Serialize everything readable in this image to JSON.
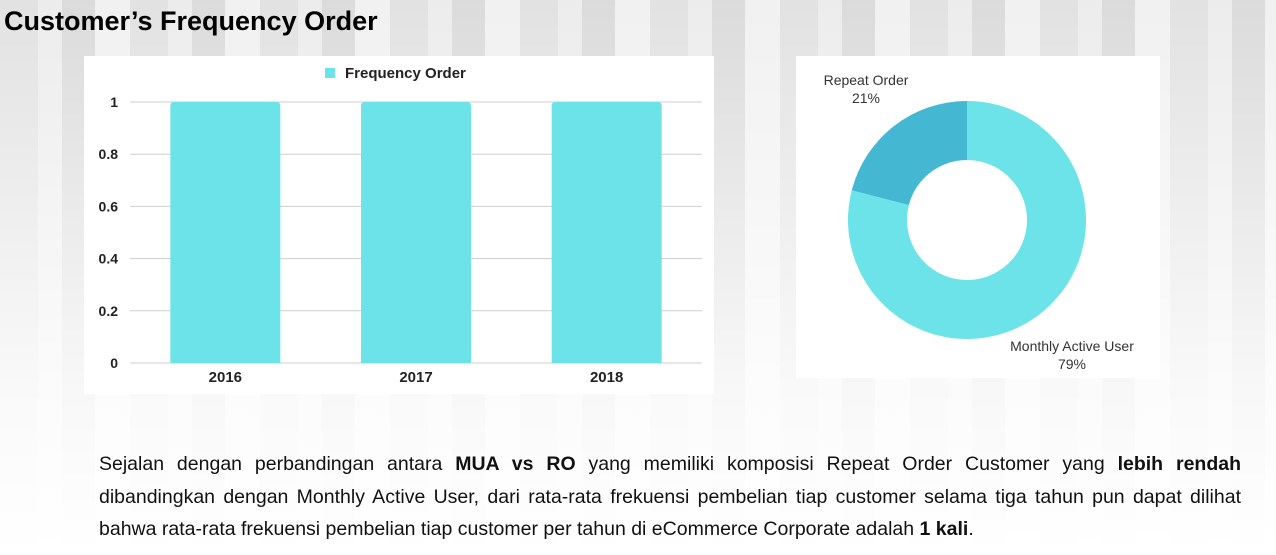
{
  "page": {
    "title": "Customer’s Frequency Order"
  },
  "chart_data": [
    {
      "type": "bar",
      "legend": [
        "Frequency Order"
      ],
      "categories": [
        "2016",
        "2017",
        "2018"
      ],
      "series": [
        {
          "name": "Frequency Order",
          "values": [
            1,
            1,
            1
          ],
          "color": "#6be3e8"
        }
      ],
      "yticks": [
        "0",
        "0.2",
        "0.4",
        "0.6",
        "0.8",
        "1"
      ],
      "ylim": [
        0,
        1
      ],
      "grid": true,
      "legend_position": "top-center"
    },
    {
      "type": "pie",
      "donut": true,
      "slices": [
        {
          "label": "Repeat Order",
          "value": 21,
          "display": "21%",
          "color": "#44b7d3"
        },
        {
          "label": "Monthly Active User",
          "value": 79,
          "display": "79%",
          "color": "#6be3e8"
        }
      ]
    }
  ],
  "description": {
    "p1": "Sejalan dengan perbandingan antara ",
    "b1": "MUA vs RO",
    "p2": " yang memiliki komposisi Repeat Order Customer yang ",
    "b2": "lebih rendah",
    "p3": " dibandingkan dengan Monthly Active User, dari rata-rata frekuensi pembelian tiap customer selama tiga tahun pun dapat dilihat bahwa rata-rata frekuensi pembelian tiap customer per tahun di eCommerce Corporate adalah ",
    "b3": "1 kali",
    "p4": "."
  }
}
